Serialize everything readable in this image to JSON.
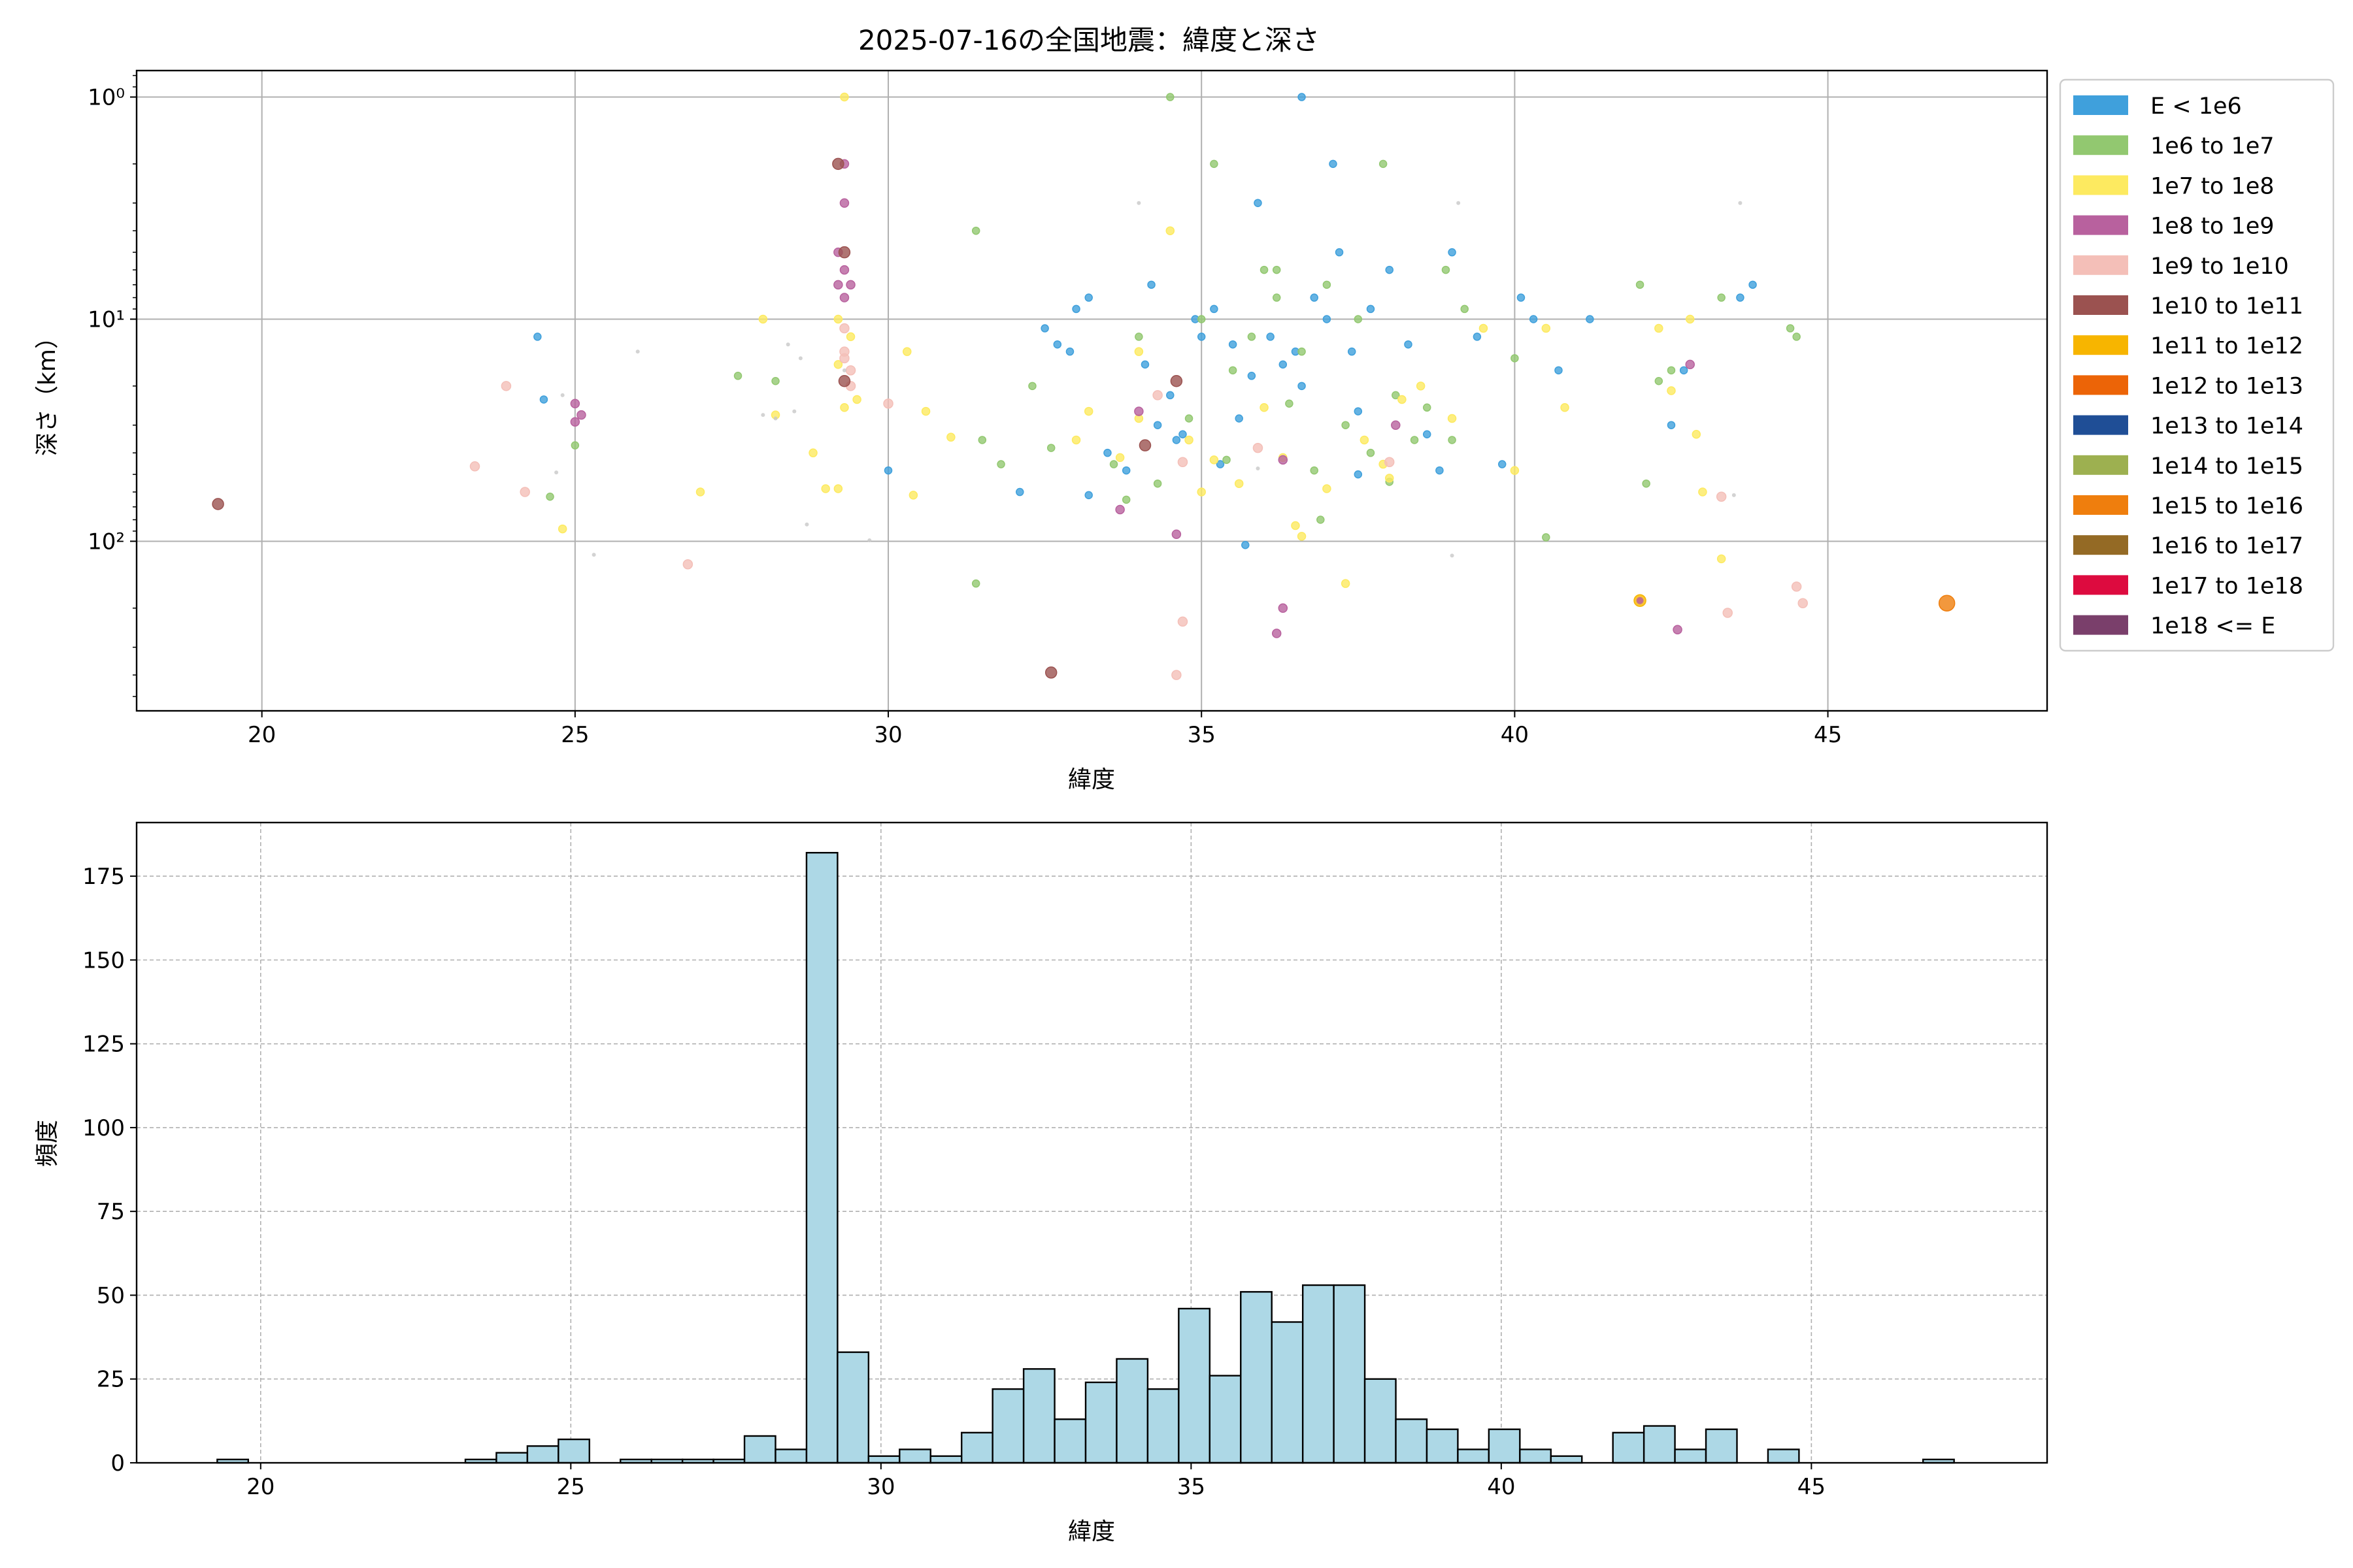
{
  "title": "2025-07-16の全国地震：緯度と深さ",
  "chart_data": [
    {
      "type": "scatter",
      "xlabel": "緯度",
      "ylabel": "深さ（km）",
      "xlim": [
        18,
        48.5
      ],
      "ylim": [
        0.76,
        580
      ],
      "y_scale": "log",
      "y_inverted": true,
      "x_ticks": [
        20,
        25,
        30,
        35,
        40,
        45
      ],
      "y_ticks": [
        {
          "value": 1,
          "label": "10⁰"
        },
        {
          "value": 10,
          "label": "10¹"
        },
        {
          "value": 100,
          "label": "10²"
        }
      ],
      "grid": true,
      "legend_position": "outside-right",
      "legend": [
        {
          "label": "E < 1e6",
          "color": "#3fa0dc"
        },
        {
          "label": "1e6 to 1e7",
          "color": "#92c870"
        },
        {
          "label": "1e7 to 1e8",
          "color": "#fdea60"
        },
        {
          "label": "1e8 to 1e9",
          "color": "#b8619e"
        },
        {
          "label": "1e9 to 1e10",
          "color": "#f4bfb8"
        },
        {
          "label": "1e10 to 1e11",
          "color": "#9b5250"
        },
        {
          "label": "1e11 to 1e12",
          "color": "#f7b500"
        },
        {
          "label": "1e12 to 1e13",
          "color": "#ec6407"
        },
        {
          "label": "1e13 to 1e14",
          "color": "#1f4e96"
        },
        {
          "label": "1e14 to 1e15",
          "color": "#9db050"
        },
        {
          "label": "1e15 to 1e16",
          "color": "#ef7e0d"
        },
        {
          "label": "1e16 to 1e17",
          "color": "#946a25"
        },
        {
          "label": "1e17 to 1e18",
          "color": "#dd0b3f"
        },
        {
          "label": "1e18 <= E",
          "color": "#7a3f6b"
        }
      ],
      "series": [
        {
          "category": 0,
          "points": [
            [
              24.4,
              12
            ],
            [
              24.5,
              23
            ],
            [
              32.5,
              11
            ],
            [
              32.7,
              13
            ],
            [
              33.0,
              9
            ],
            [
              33.2,
              8
            ],
            [
              32.9,
              14
            ],
            [
              33.5,
              40
            ],
            [
              33.8,
              48
            ],
            [
              34.1,
              16
            ],
            [
              34.3,
              30
            ],
            [
              34.2,
              7
            ],
            [
              34.5,
              22
            ],
            [
              34.7,
              33
            ],
            [
              34.9,
              10
            ],
            [
              35.0,
              12
            ],
            [
              35.2,
              9
            ],
            [
              35.3,
              45
            ],
            [
              35.5,
              13
            ],
            [
              35.6,
              28
            ],
            [
              35.8,
              18
            ],
            [
              35.9,
              3
            ],
            [
              36.1,
              12
            ],
            [
              36.3,
              16
            ],
            [
              36.5,
              14
            ],
            [
              36.6,
              1
            ],
            [
              36.8,
              8
            ],
            [
              37.0,
              10
            ],
            [
              37.1,
              2
            ],
            [
              37.2,
              5
            ],
            [
              37.4,
              14
            ],
            [
              37.5,
              26
            ],
            [
              37.7,
              9
            ],
            [
              38.0,
              6
            ],
            [
              38.3,
              13
            ],
            [
              38.6,
              33
            ],
            [
              38.8,
              48
            ],
            [
              39.0,
              5
            ],
            [
              39.4,
              12
            ],
            [
              39.8,
              45
            ],
            [
              40.1,
              8
            ],
            [
              40.3,
              10
            ],
            [
              40.7,
              17
            ],
            [
              41.2,
              10
            ],
            [
              42.5,
              30
            ],
            [
              42.7,
              17
            ],
            [
              43.6,
              8
            ],
            [
              43.8,
              7
            ],
            [
              30.0,
              48
            ],
            [
              32.1,
              60
            ],
            [
              33.2,
              62
            ],
            [
              34.6,
              35
            ],
            [
              35.7,
              104
            ],
            [
              36.6,
              20
            ],
            [
              37.5,
              50
            ]
          ]
        },
        {
          "category": 1,
          "points": [
            [
              25.0,
              37
            ],
            [
              24.6,
              63
            ],
            [
              27.6,
              18
            ],
            [
              28.2,
              19
            ],
            [
              31.4,
              4
            ],
            [
              31.5,
              35
            ],
            [
              31.8,
              45
            ],
            [
              32.3,
              20
            ],
            [
              32.6,
              38
            ],
            [
              33.6,
              45
            ],
            [
              34.0,
              12
            ],
            [
              34.3,
              55
            ],
            [
              34.5,
              1
            ],
            [
              34.8,
              28
            ],
            [
              35.0,
              10
            ],
            [
              35.2,
              2
            ],
            [
              35.5,
              17
            ],
            [
              35.8,
              12
            ],
            [
              36.0,
              6
            ],
            [
              36.2,
              8
            ],
            [
              36.4,
              24
            ],
            [
              36.6,
              14
            ],
            [
              36.8,
              48
            ],
            [
              37.0,
              7
            ],
            [
              37.3,
              30
            ],
            [
              37.5,
              10
            ],
            [
              37.7,
              40
            ],
            [
              37.9,
              2
            ],
            [
              38.1,
              22
            ],
            [
              38.4,
              35
            ],
            [
              38.6,
              25
            ],
            [
              38.9,
              6
            ],
            [
              39.2,
              9
            ],
            [
              40.0,
              15
            ],
            [
              40.5,
              96
            ],
            [
              42.0,
              7
            ],
            [
              42.1,
              55
            ],
            [
              42.3,
              19
            ],
            [
              42.5,
              17
            ],
            [
              43.3,
              8
            ],
            [
              44.4,
              11
            ],
            [
              44.5,
              12
            ],
            [
              31.4,
              155
            ],
            [
              33.8,
              65
            ],
            [
              35.4,
              43
            ],
            [
              36.9,
              80
            ],
            [
              38.0,
              54
            ],
            [
              39.0,
              35
            ],
            [
              36.2,
              6
            ]
          ]
        },
        {
          "category": 2,
          "points": [
            [
              29.3,
              1
            ],
            [
              29.2,
              10
            ],
            [
              29.4,
              12
            ],
            [
              29.2,
              16
            ],
            [
              29.3,
              25
            ],
            [
              29.5,
              23
            ],
            [
              28.0,
              10
            ],
            [
              28.2,
              27
            ],
            [
              28.8,
              40
            ],
            [
              29.0,
              58
            ],
            [
              30.3,
              14
            ],
            [
              30.6,
              26
            ],
            [
              30.4,
              62
            ],
            [
              31.0,
              34
            ],
            [
              33.0,
              35
            ],
            [
              33.2,
              26
            ],
            [
              33.7,
              42
            ],
            [
              34.0,
              14
            ],
            [
              34.5,
              4
            ],
            [
              34.8,
              35
            ],
            [
              35.0,
              60
            ],
            [
              35.2,
              43
            ],
            [
              35.6,
              55
            ],
            [
              36.0,
              25
            ],
            [
              36.3,
              42
            ],
            [
              36.6,
              95
            ],
            [
              37.0,
              58
            ],
            [
              37.3,
              155
            ],
            [
              37.6,
              35
            ],
            [
              37.9,
              45
            ],
            [
              38.2,
              23
            ],
            [
              38.5,
              20
            ],
            [
              39.0,
              28
            ],
            [
              39.5,
              11
            ],
            [
              40.0,
              48
            ],
            [
              40.5,
              11
            ],
            [
              40.8,
              25
            ],
            [
              42.3,
              11
            ],
            [
              42.5,
              21
            ],
            [
              42.8,
              10
            ],
            [
              42.9,
              33
            ],
            [
              43.0,
              60
            ],
            [
              43.3,
              120
            ],
            [
              24.8,
              88
            ],
            [
              27.0,
              60
            ],
            [
              29.2,
              58
            ],
            [
              34.0,
              28
            ],
            [
              36.5,
              85
            ],
            [
              38.0,
              52
            ]
          ]
        },
        {
          "category": 3,
          "points": [
            [
              29.3,
              2
            ],
            [
              29.3,
              3
            ],
            [
              29.2,
              5
            ],
            [
              29.3,
              6
            ],
            [
              29.2,
              7
            ],
            [
              29.4,
              7
            ],
            [
              29.3,
              8
            ],
            [
              25.0,
              24
            ],
            [
              25.1,
              27
            ],
            [
              25.0,
              29
            ],
            [
              34.0,
              26
            ],
            [
              33.7,
              72
            ],
            [
              34.6,
              93
            ],
            [
              36.3,
              200
            ],
            [
              36.2,
              260
            ],
            [
              38.1,
              30
            ],
            [
              42.6,
              250
            ],
            [
              42.8,
              16
            ],
            [
              36.3,
              43
            ]
          ]
        },
        {
          "category": 4,
          "points": [
            [
              23.4,
              46
            ],
            [
              23.9,
              20
            ],
            [
              24.2,
              60
            ],
            [
              26.8,
              127
            ],
            [
              29.3,
              11
            ],
            [
              29.3,
              14
            ],
            [
              29.3,
              15
            ],
            [
              29.4,
              17
            ],
            [
              29.4,
              20
            ],
            [
              30.0,
              24
            ],
            [
              34.3,
              22
            ],
            [
              34.7,
              44
            ],
            [
              34.7,
              230
            ],
            [
              34.6,
              400
            ],
            [
              35.9,
              38
            ],
            [
              38.0,
              44
            ],
            [
              43.3,
              63
            ],
            [
              43.4,
              210
            ],
            [
              44.5,
              160
            ],
            [
              44.6,
              190
            ]
          ]
        },
        {
          "category": 5,
          "points": [
            [
              19.3,
              68
            ],
            [
              29.2,
              2
            ],
            [
              29.3,
              19
            ],
            [
              29.3,
              5
            ],
            [
              34.1,
              37
            ],
            [
              34.6,
              19
            ],
            [
              32.6,
              390
            ]
          ]
        },
        {
          "category": 6,
          "points": [
            [
              42.0,
              185
            ]
          ]
        },
        {
          "category": 10,
          "points": [
            [
              46.9,
              190
            ]
          ]
        },
        {
          "category": -1,
          "points": [
            [
              26.0,
              14
            ],
            [
              28.4,
              13
            ],
            [
              28.6,
              15
            ],
            [
              28.2,
              28
            ],
            [
              28.5,
              26
            ],
            [
              28.7,
              84
            ],
            [
              28.0,
              27
            ],
            [
              25.3,
              115
            ],
            [
              24.8,
              22
            ],
            [
              24.7,
              49
            ],
            [
              29.7,
              99
            ],
            [
              34.0,
              3
            ],
            [
              35.9,
              47
            ],
            [
              39.1,
              3
            ],
            [
              39.0,
              116
            ],
            [
              43.6,
              3
            ],
            [
              43.5,
              62
            ],
            [
              29.3,
              17
            ]
          ]
        }
      ]
    },
    {
      "type": "bar",
      "xlabel": "緯度",
      "ylabel": "頻度",
      "xlim": [
        18,
        48.8
      ],
      "ylim": [
        0,
        191
      ],
      "x_ticks": [
        20,
        25,
        30,
        35,
        40,
        45
      ],
      "y_ticks": [
        0,
        25,
        50,
        75,
        100,
        125,
        150,
        175
      ],
      "grid": "dashed",
      "bin_edges": [
        19.3,
        19.8,
        20.3,
        20.8,
        21.3,
        21.8,
        22.3,
        22.8,
        23.3,
        23.8,
        24.3,
        24.8,
        25.3,
        25.8,
        26.3,
        26.8,
        27.3,
        27.8,
        28.3,
        28.8,
        29.3,
        29.8,
        30.3,
        30.8,
        31.3,
        31.8,
        32.3,
        32.8,
        33.3,
        33.8,
        34.3,
        34.8,
        35.3,
        35.8,
        36.3,
        36.8,
        37.3,
        37.8,
        38.3,
        38.8,
        39.3,
        39.8,
        40.3,
        40.8,
        41.3,
        41.8,
        42.3,
        42.8,
        43.3,
        43.8,
        44.3,
        44.8,
        45.3,
        45.8,
        46.3,
        46.8,
        47.3
      ],
      "values": [
        1,
        0,
        0,
        0,
        0,
        0,
        0,
        0,
        1,
        3,
        5,
        7,
        0,
        1,
        1,
        1,
        1,
        8,
        4,
        182,
        33,
        2,
        4,
        2,
        9,
        22,
        28,
        13,
        24,
        31,
        22,
        46,
        26,
        51,
        42,
        53,
        53,
        25,
        13,
        10,
        4,
        10,
        4,
        2,
        0,
        9,
        11,
        4,
        10,
        0,
        4,
        0,
        0,
        0,
        0,
        1
      ],
      "bar_color": "#add8e6",
      "edge_color": "#000000"
    }
  ]
}
